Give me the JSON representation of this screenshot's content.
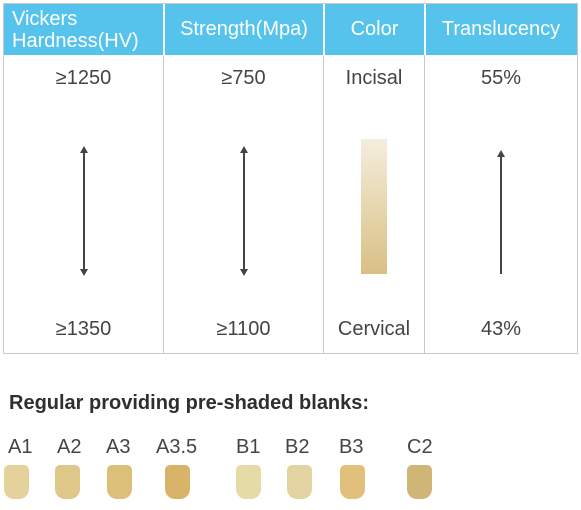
{
  "table": {
    "headers": [
      "Vickers Hardness(HV)",
      "Strength(Mpa)",
      "Color",
      "Translucency"
    ],
    "columns": [
      {
        "top": "≥1250",
        "bottom": "≥1350"
      },
      {
        "top": "≥750",
        "bottom": "≥1100"
      },
      {
        "top": "Incisal",
        "bottom": "Cervical"
      },
      {
        "top": "55%",
        "bottom": "43%"
      }
    ],
    "colors": {
      "header_bg": "#55c3ec",
      "gradient_top": "#f4eedd",
      "gradient_bottom": "#d9bf84"
    }
  },
  "section_title": "Regular providing pre-shaded blanks:",
  "shades": [
    {
      "label": "A1",
      "color": "#e5d19c"
    },
    {
      "label": "A2",
      "color": "#dfc689"
    },
    {
      "label": "A3",
      "color": "#dcbf78"
    },
    {
      "label": "A3.5",
      "color": "#d8b469"
    },
    {
      "label": "B1",
      "color": "#e4dba6"
    },
    {
      "label": "B2",
      "color": "#e3d3a2"
    },
    {
      "label": "B3",
      "color": "#e1c07c"
    },
    {
      "label": "C2",
      "color": "#cfb676"
    }
  ]
}
